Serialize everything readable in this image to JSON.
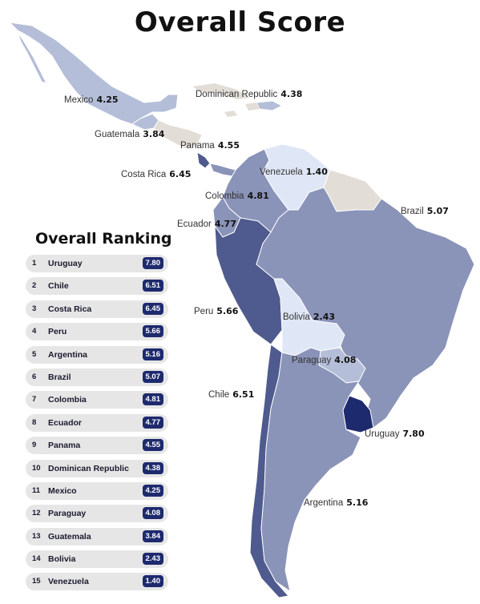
{
  "title": "Overall Score",
  "ranking_title": "Overall Ranking",
  "map_labels": {
    "mexico": {
      "name": "Mexico",
      "score": "4.25"
    },
    "dominican": {
      "name": "Dominican Republic",
      "score": "4.38"
    },
    "guatemala": {
      "name": "Guatemala",
      "score": "3.84"
    },
    "panama": {
      "name": "Panama",
      "score": "4.55"
    },
    "costarica": {
      "name": "Costa Rica",
      "score": "6.45"
    },
    "venezuela": {
      "name": "Venezuela",
      "score": "1.40"
    },
    "colombia": {
      "name": "Colombia",
      "score": "4.81"
    },
    "ecuador": {
      "name": "Ecuador",
      "score": "4.77"
    },
    "brazil": {
      "name": "Brazil",
      "score": "5.07"
    },
    "peru": {
      "name": "Peru",
      "score": "5.66"
    },
    "bolivia": {
      "name": "Bolivia",
      "score": "2.43"
    },
    "paraguay": {
      "name": "Paraguay",
      "score": "4.08"
    },
    "chile": {
      "name": "Chile",
      "score": "6.51"
    },
    "uruguay": {
      "name": "Uruguay",
      "score": "7.80"
    },
    "argentina": {
      "name": "Argentina",
      "score": "5.16"
    }
  },
  "ranking": [
    {
      "rank": "1",
      "country": "Uruguay",
      "score": "7.80"
    },
    {
      "rank": "2",
      "country": "Chile",
      "score": "6.51"
    },
    {
      "rank": "3",
      "country": "Costa Rica",
      "score": "6.45"
    },
    {
      "rank": "4",
      "country": "Peru",
      "score": "5.66"
    },
    {
      "rank": "5",
      "country": "Argentina",
      "score": "5.16"
    },
    {
      "rank": "6",
      "country": "Brazil",
      "score": "5.07"
    },
    {
      "rank": "7",
      "country": "Colombia",
      "score": "4.81"
    },
    {
      "rank": "8",
      "country": "Ecuador",
      "score": "4.77"
    },
    {
      "rank": "9",
      "country": "Panama",
      "score": "4.55"
    },
    {
      "rank": "10",
      "country": "Dominican Republic",
      "score": "4.38"
    },
    {
      "rank": "11",
      "country": "Mexico",
      "score": "4.25"
    },
    {
      "rank": "12",
      "country": "Paraguay",
      "score": "4.08"
    },
    {
      "rank": "13",
      "country": "Guatemala",
      "score": "3.84"
    },
    {
      "rank": "14",
      "country": "Bolivia",
      "score": "2.43"
    },
    {
      "rank": "15",
      "country": "Venezuela",
      "score": "1.40"
    }
  ],
  "colors": {
    "no_data": "#e2ddd6",
    "darkest": "#1e2a6e",
    "dark": "#4f5b8e",
    "mid": "#8a93b8",
    "light": "#b5bed8",
    "lightest": "#dfe6f5",
    "badge": "#1e2a6e",
    "row_bg": "#e6e6e6"
  }
}
